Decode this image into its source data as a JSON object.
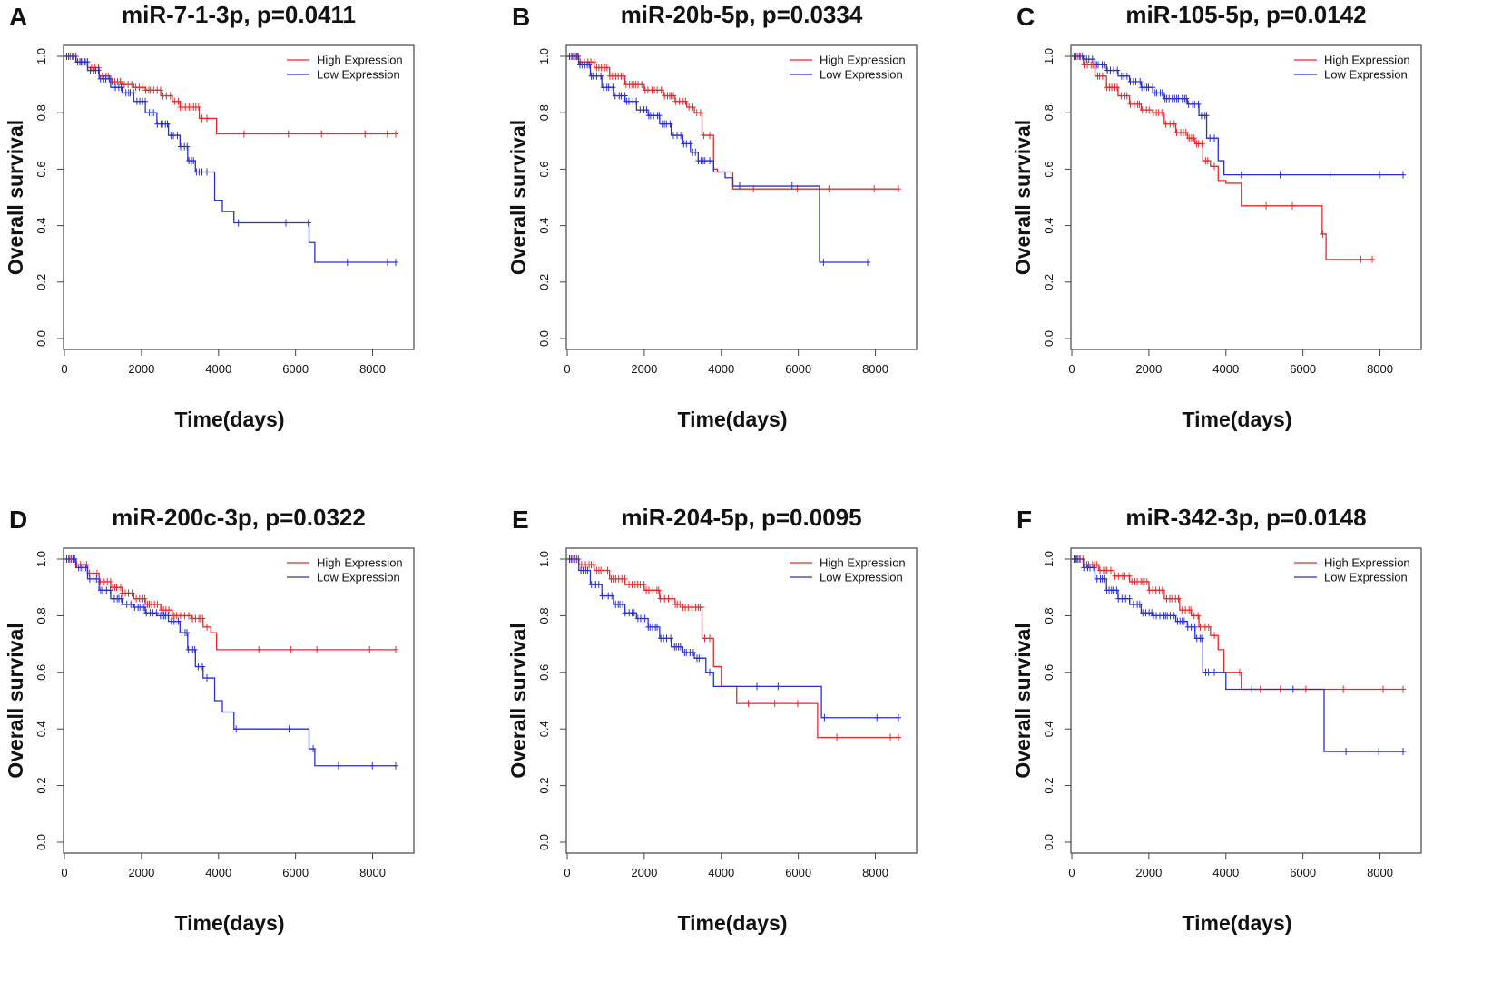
{
  "chart_data": [
    {
      "panel": "A",
      "type": "line",
      "title": "miR-7-1-3p, p=0.0411",
      "xlabel": "Time(days)",
      "ylabel": "Overall survival",
      "xlim": [
        0,
        8600
      ],
      "ylim": [
        0,
        1.0
      ],
      "xticks": [
        "0",
        "2000",
        "4000",
        "6000",
        "8000"
      ],
      "yticks": [
        "0.0",
        "0.2",
        "0.4",
        "0.6",
        "0.8",
        "1.0"
      ],
      "legend": {
        "position": "top-right"
      },
      "series": [
        {
          "name": "High Expression",
          "color": "#e8292b",
          "x": [
            0,
            300,
            600,
            900,
            1200,
            1500,
            1800,
            2100,
            2500,
            2800,
            3000,
            3200,
            3500,
            3800,
            3950,
            8600
          ],
          "y": [
            1.0,
            0.98,
            0.96,
            0.93,
            0.91,
            0.9,
            0.89,
            0.88,
            0.86,
            0.84,
            0.82,
            0.82,
            0.78,
            0.78,
            0.725,
            0.725
          ]
        },
        {
          "name": "Low Expression",
          "color": "#2a2fd0",
          "x": [
            0,
            300,
            600,
            900,
            1200,
            1500,
            1800,
            2100,
            2400,
            2700,
            3000,
            3200,
            3400,
            3600,
            3900,
            4100,
            4400,
            6350,
            6500,
            8600
          ],
          "y": [
            1.0,
            0.98,
            0.95,
            0.92,
            0.89,
            0.87,
            0.84,
            0.8,
            0.76,
            0.72,
            0.68,
            0.63,
            0.59,
            0.59,
            0.49,
            0.45,
            0.41,
            0.34,
            0.27,
            0.27
          ]
        }
      ]
    },
    {
      "panel": "B",
      "type": "line",
      "title": "miR-20b-5p, p=0.0334",
      "xlabel": "Time(days)",
      "ylabel": "Overall survival",
      "xlim": [
        0,
        8600
      ],
      "ylim": [
        0,
        1.0
      ],
      "xticks": [
        "0",
        "2000",
        "4000",
        "6000",
        "8000"
      ],
      "yticks": [
        "0.0",
        "0.2",
        "0.4",
        "0.6",
        "0.8",
        "1.0"
      ],
      "legend": {
        "position": "top-right"
      },
      "series": [
        {
          "name": "High Expression",
          "color": "#e8292b",
          "x": [
            0,
            300,
            700,
            1100,
            1500,
            2000,
            2500,
            2800,
            3100,
            3300,
            3500,
            3800,
            3900,
            4300,
            8600
          ],
          "y": [
            1.0,
            0.98,
            0.96,
            0.93,
            0.9,
            0.88,
            0.86,
            0.84,
            0.82,
            0.8,
            0.72,
            0.6,
            0.59,
            0.53,
            0.53
          ]
        },
        {
          "name": "Low Expression",
          "color": "#2a2fd0",
          "x": [
            0,
            300,
            600,
            900,
            1200,
            1500,
            1800,
            2100,
            2400,
            2700,
            3000,
            3200,
            3400,
            3600,
            3800,
            4100,
            4300,
            6400,
            6550,
            7800
          ],
          "y": [
            1.0,
            0.97,
            0.93,
            0.89,
            0.86,
            0.84,
            0.81,
            0.79,
            0.76,
            0.72,
            0.69,
            0.66,
            0.63,
            0.63,
            0.59,
            0.57,
            0.54,
            0.54,
            0.27,
            0.27
          ]
        }
      ]
    },
    {
      "panel": "C",
      "type": "line",
      "title": "miR-105-5p, p=0.0142",
      "xlabel": "Time(days)",
      "ylabel": "Overall survival",
      "xlim": [
        0,
        8600
      ],
      "ylim": [
        0,
        1.0
      ],
      "xticks": [
        "0",
        "2000",
        "4000",
        "6000",
        "8000"
      ],
      "yticks": [
        "0.0",
        "0.2",
        "0.4",
        "0.6",
        "0.8",
        "1.0"
      ],
      "legend": {
        "position": "top-right"
      },
      "series": [
        {
          "name": "High Expression",
          "color": "#e8292b",
          "x": [
            0,
            300,
            600,
            900,
            1200,
            1500,
            1800,
            2100,
            2400,
            2700,
            3000,
            3200,
            3400,
            3600,
            3800,
            4000,
            4400,
            6500,
            6600,
            7800
          ],
          "y": [
            1.0,
            0.97,
            0.93,
            0.89,
            0.86,
            0.83,
            0.81,
            0.8,
            0.76,
            0.73,
            0.71,
            0.69,
            0.63,
            0.61,
            0.56,
            0.55,
            0.47,
            0.37,
            0.28,
            0.28
          ]
        },
        {
          "name": "Low Expression",
          "color": "#2a2fd0",
          "x": [
            0,
            300,
            600,
            900,
            1200,
            1500,
            1800,
            2100,
            2400,
            2700,
            3000,
            3300,
            3500,
            3800,
            3950,
            8600
          ],
          "y": [
            1.0,
            0.99,
            0.97,
            0.95,
            0.93,
            0.91,
            0.89,
            0.87,
            0.85,
            0.85,
            0.83,
            0.79,
            0.71,
            0.63,
            0.58,
            0.58
          ]
        }
      ]
    },
    {
      "panel": "D",
      "type": "line",
      "title": "miR-200c-3p, p=0.0322",
      "xlabel": "Time(days)",
      "ylabel": "Overall survival",
      "xlim": [
        0,
        8600
      ],
      "ylim": [
        0,
        1.0
      ],
      "xticks": [
        "0",
        "2000",
        "4000",
        "6000",
        "8000"
      ],
      "yticks": [
        "0.0",
        "0.2",
        "0.4",
        "0.6",
        "0.8",
        "1.0"
      ],
      "legend": {
        "position": "top-right"
      },
      "series": [
        {
          "name": "High Expression",
          "color": "#e8292b",
          "x": [
            0,
            300,
            600,
            900,
            1200,
            1500,
            1800,
            2100,
            2500,
            2800,
            3000,
            3300,
            3600,
            3800,
            3950,
            8600
          ],
          "y": [
            1.0,
            0.98,
            0.95,
            0.92,
            0.9,
            0.88,
            0.86,
            0.84,
            0.82,
            0.8,
            0.8,
            0.79,
            0.76,
            0.74,
            0.68,
            0.68
          ]
        },
        {
          "name": "Low Expression",
          "color": "#2a2fd0",
          "x": [
            0,
            300,
            600,
            900,
            1200,
            1500,
            1800,
            2100,
            2400,
            2700,
            3000,
            3200,
            3400,
            3600,
            3900,
            4100,
            4400,
            6350,
            6500,
            8600
          ],
          "y": [
            1.0,
            0.97,
            0.93,
            0.89,
            0.86,
            0.84,
            0.83,
            0.81,
            0.8,
            0.78,
            0.74,
            0.68,
            0.62,
            0.58,
            0.5,
            0.46,
            0.4,
            0.33,
            0.27,
            0.27
          ]
        }
      ]
    },
    {
      "panel": "E",
      "type": "line",
      "title": "miR-204-5p, p=0.0095",
      "xlabel": "Time(days)",
      "ylabel": "Overall survival",
      "xlim": [
        0,
        8600
      ],
      "ylim": [
        0,
        1.0
      ],
      "xticks": [
        "0",
        "2000",
        "4000",
        "6000",
        "8000"
      ],
      "yticks": [
        "0.0",
        "0.2",
        "0.4",
        "0.6",
        "0.8",
        "1.0"
      ],
      "legend": {
        "position": "top-right"
      },
      "series": [
        {
          "name": "High Expression",
          "color": "#e8292b",
          "x": [
            0,
            300,
            700,
            1100,
            1500,
            2000,
            2400,
            2800,
            3000,
            3300,
            3500,
            3800,
            4000,
            4400,
            6500,
            8600
          ],
          "y": [
            1.0,
            0.98,
            0.96,
            0.93,
            0.91,
            0.89,
            0.86,
            0.84,
            0.83,
            0.83,
            0.72,
            0.62,
            0.55,
            0.49,
            0.37,
            0.37
          ]
        },
        {
          "name": "Low Expression",
          "color": "#2a2fd0",
          "x": [
            0,
            300,
            600,
            900,
            1200,
            1500,
            1800,
            2100,
            2400,
            2700,
            3000,
            3300,
            3600,
            3800,
            4000,
            6600,
            8600
          ],
          "y": [
            1.0,
            0.96,
            0.91,
            0.87,
            0.84,
            0.81,
            0.79,
            0.76,
            0.72,
            0.69,
            0.67,
            0.65,
            0.6,
            0.55,
            0.55,
            0.44,
            0.44
          ]
        }
      ]
    },
    {
      "panel": "F",
      "type": "line",
      "title": "miR-342-3p, p=0.0148",
      "xlabel": "Time(days)",
      "ylabel": "Overall survival",
      "xlim": [
        0,
        8600
      ],
      "ylim": [
        0,
        1.0
      ],
      "xticks": [
        "0",
        "2000",
        "4000",
        "6000",
        "8000"
      ],
      "yticks": [
        "0.0",
        "0.2",
        "0.4",
        "0.6",
        "0.8",
        "1.0"
      ],
      "legend": {
        "position": "top-right"
      },
      "series": [
        {
          "name": "High Expression",
          "color": "#e8292b",
          "x": [
            0,
            300,
            700,
            1100,
            1500,
            2000,
            2400,
            2800,
            3100,
            3300,
            3600,
            3800,
            3950,
            4400,
            8600
          ],
          "y": [
            1.0,
            0.98,
            0.96,
            0.94,
            0.92,
            0.89,
            0.86,
            0.82,
            0.8,
            0.76,
            0.73,
            0.68,
            0.6,
            0.54,
            0.54
          ]
        },
        {
          "name": "Low Expression",
          "color": "#2a2fd0",
          "x": [
            0,
            300,
            600,
            900,
            1200,
            1500,
            1800,
            2100,
            2400,
            2700,
            3000,
            3200,
            3400,
            4000,
            6450,
            6550,
            8600
          ],
          "y": [
            1.0,
            0.97,
            0.93,
            0.89,
            0.86,
            0.84,
            0.81,
            0.8,
            0.8,
            0.78,
            0.76,
            0.72,
            0.6,
            0.54,
            0.54,
            0.32,
            0.32
          ]
        }
      ]
    }
  ]
}
